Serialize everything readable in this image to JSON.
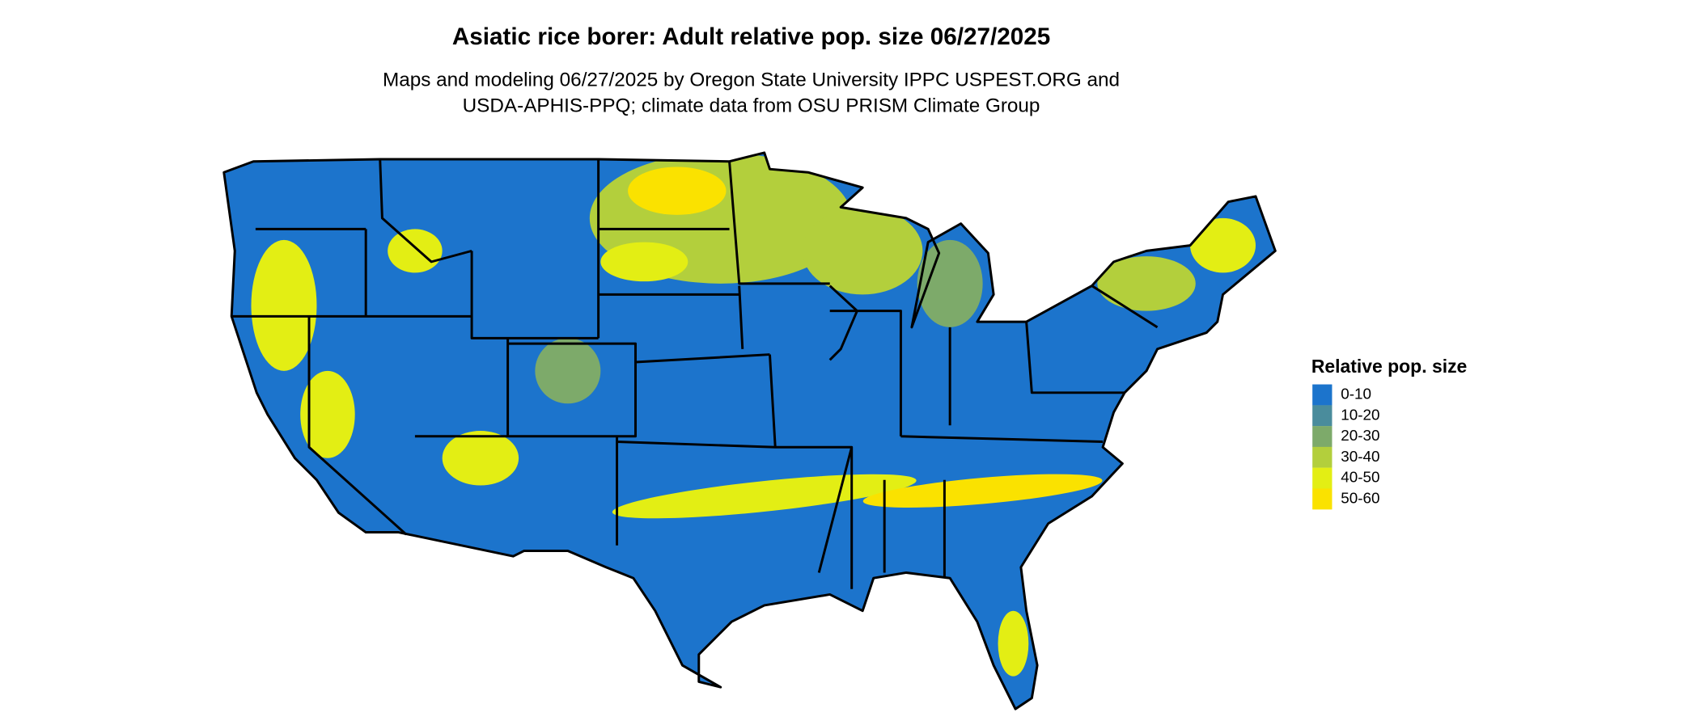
{
  "title": "Asiatic rice borer: Adult relative pop. size 06/27/2025",
  "subtitle_lines": [
    "Maps and modeling 06/27/2025 by Oregon State University IPPC USPEST.ORG and",
    "USDA-APHIS-PPQ; climate data from OSU PRISM Climate Group"
  ],
  "legend": {
    "title": "Relative pop. size",
    "items": [
      {
        "label": "0-10",
        "color": "#1c74cc"
      },
      {
        "label": "10-20",
        "color": "#4a8c9c"
      },
      {
        "label": "20-30",
        "color": "#7daa6a"
      },
      {
        "label": "30-40",
        "color": "#b3cf3c"
      },
      {
        "label": "40-50",
        "color": "#e3ee14"
      },
      {
        "label": "50-60",
        "color": "#fae200"
      }
    ]
  }
}
